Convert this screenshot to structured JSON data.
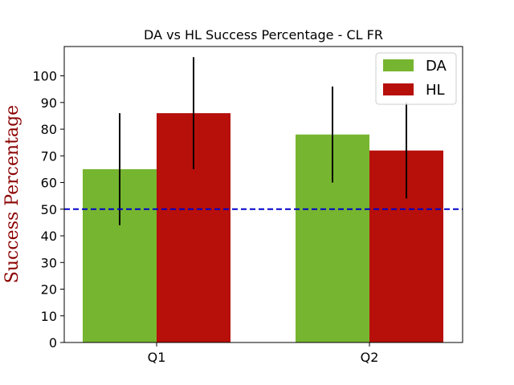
{
  "colors": {
    "da": "#76b52f",
    "hl": "#b70f0a",
    "threshold": "#0000cc",
    "ylabel": "#8b0000"
  },
  "chart_data": {
    "type": "bar",
    "title": "DA vs HL Success Percentage - CL FR",
    "xlabel": "",
    "ylabel": "Success Percentage",
    "categories": [
      "Q1",
      "Q2"
    ],
    "series": [
      {
        "name": "DA",
        "values": [
          65,
          78
        ],
        "error_low": [
          44,
          60
        ],
        "error_high": [
          86,
          96
        ]
      },
      {
        "name": "HL",
        "values": [
          86,
          72
        ],
        "error_low": [
          65,
          54
        ],
        "error_high": [
          107,
          90
        ]
      }
    ],
    "threshold": 50,
    "ylim": [
      0,
      111
    ],
    "yticks": [
      0,
      10,
      20,
      30,
      40,
      50,
      60,
      70,
      80,
      90,
      100
    ],
    "grid": false,
    "legend_position": "top-right"
  }
}
